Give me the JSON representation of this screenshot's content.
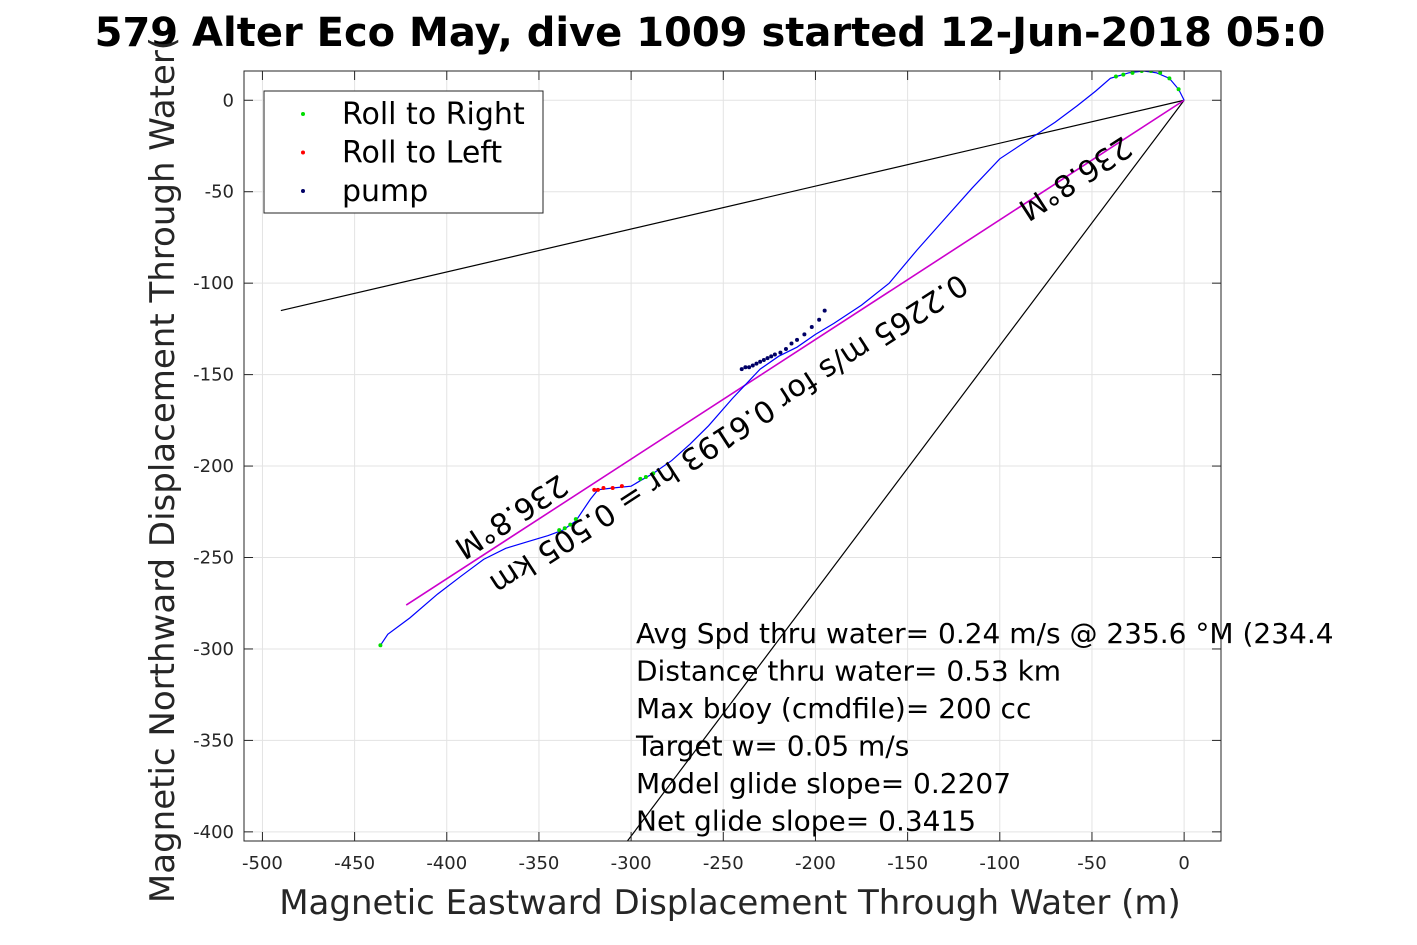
{
  "chart_data": {
    "type": "line",
    "title": "579 Alter Eco May, dive 1009 started 12-Jun-2018 05:0",
    "xlabel": "Magnetic Eastward Displacement Through Water (m)",
    "ylabel": "Magnetic Northward Displacement Through Water(",
    "xlim": [
      -510,
      20
    ],
    "ylim": [
      -405,
      16
    ],
    "xticks": [
      -500,
      -450,
      -400,
      -350,
      -300,
      -250,
      -200,
      -150,
      -100,
      -50,
      0
    ],
    "yticks": [
      0,
      -50,
      -100,
      -150,
      -200,
      -250,
      -300,
      -350,
      -400
    ],
    "grid": true,
    "legend_placement": "top-left",
    "legend": [
      {
        "label": "Roll to Right",
        "color": "#00dd00"
      },
      {
        "label": "Roll to Left",
        "color": "#ff0000"
      },
      {
        "label": "pump",
        "color": "#000066"
      }
    ],
    "track": {
      "color": "#0000ff",
      "x": [
        0,
        -3,
        -8,
        -15,
        -22,
        -30,
        -40,
        -48,
        -58,
        -70,
        -85,
        -100,
        -115,
        -130,
        -145,
        -160,
        -175,
        -190,
        -200,
        -210,
        -220,
        -230,
        -245,
        -258,
        -268,
        -278,
        -288,
        -295,
        -300,
        -310,
        -318,
        -322,
        -330,
        -337,
        -345,
        -355,
        -368,
        -380,
        -392,
        -405,
        -420,
        -432,
        -436
      ],
      "y": [
        0,
        6,
        12,
        15,
        16,
        15,
        12,
        5,
        -3,
        -12,
        -22,
        -32,
        -48,
        -65,
        -82,
        -100,
        -112,
        -122,
        -128,
        -135,
        -140,
        -147,
        -163,
        -178,
        -188,
        -197,
        -204,
        -208,
        -211,
        -212,
        -213,
        -218,
        -230,
        -235,
        -238,
        -241,
        -245,
        -251,
        -260,
        -270,
        -283,
        -292,
        -298
      ]
    },
    "roll_right": {
      "x": [
        -3,
        -8,
        -13,
        -18,
        -23,
        -28,
        -33,
        -37,
        -288,
        -292,
        -295,
        -330,
        -333,
        -336,
        -339,
        -436
      ],
      "y": [
        6,
        12,
        15,
        16,
        16,
        15,
        14,
        13,
        -204,
        -206,
        -207,
        -229,
        -232,
        -234,
        -235,
        -298
      ]
    },
    "roll_left": {
      "x": [
        -305,
        -310,
        -315,
        -318,
        -320
      ],
      "y": [
        -211,
        -212,
        -212,
        -213,
        -213
      ]
    },
    "pump": {
      "x": [
        -195,
        -198,
        -202,
        -206,
        -210,
        -213,
        -216,
        -219,
        -222,
        -224,
        -226,
        -228,
        -230,
        -232,
        -234,
        -236,
        -238,
        -240
      ],
      "y": [
        -115,
        -120,
        -124,
        -128,
        -131,
        -133,
        -136,
        -138,
        -139,
        -140,
        -141,
        -142,
        -143,
        -144,
        -145,
        -146,
        -146,
        -147
      ]
    },
    "lines": [
      {
        "name": "",
        "color": "#000000",
        "x": [
          0,
          -490
        ],
        "y": [
          0,
          -115
        ]
      },
      {
        "name": "",
        "color": "#000000",
        "x": [
          0,
          -302
        ],
        "y": [
          0,
          -405
        ]
      },
      {
        "name": "",
        "color": "#cc00cc",
        "x": [
          0,
          -422
        ],
        "y": [
          0,
          -276
        ]
      }
    ],
    "annotations": [
      {
        "text": "0.2265 m/s for 0.6193 hr = 0.505 km",
        "x": -250,
        "y": -178
      },
      {
        "text": "236.8°M",
        "x": -62,
        "y": -38
      },
      {
        "text": "236.8°M",
        "x": -368,
        "y": -223
      }
    ],
    "stats": [
      "Avg Spd thru water=  0.24 m/s @ 235.6 °M (234.4",
      "Distance thru water=  0.53 km",
      "Max buoy (cmdfile)= 200 cc",
      "Target w= 0.05 m/s",
      "Model glide slope= 0.2207",
      "Net glide slope= 0.3415"
    ]
  }
}
